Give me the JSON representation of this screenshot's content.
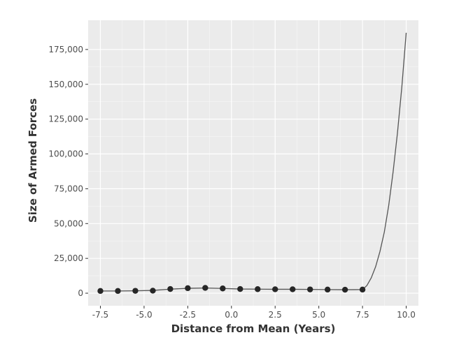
{
  "chart_data": {
    "type": "line",
    "title": "",
    "xlabel": "Distance from Mean (Years)",
    "ylabel": "Size of Armed Forces",
    "xlim": [
      -8.2,
      10.7
    ],
    "ylim": [
      -9000,
      196000
    ],
    "x_ticks": [
      -7.5,
      -5.0,
      -2.5,
      0.0,
      2.5,
      5.0,
      7.5,
      10.0
    ],
    "x_tick_labels": [
      "-7.5",
      "-5.0",
      "-2.5",
      "0.0",
      "2.5",
      "5.0",
      "7.5",
      "10.0"
    ],
    "y_ticks": [
      0,
      25000,
      50000,
      75000,
      100000,
      125000,
      150000,
      175000
    ],
    "y_tick_labels": [
      "0",
      "25,000",
      "50,000",
      "75,000",
      "100,000",
      "125,000",
      "150,000",
      "175,000"
    ],
    "grid": true,
    "background": "#ebebeb",
    "series": [
      {
        "type": "scatter",
        "color": "#262626",
        "x": [
          -7.5,
          -6.5,
          -5.5,
          -4.5,
          -3.5,
          -2.5,
          -1.5,
          -0.5,
          0.5,
          1.5,
          2.5,
          3.5,
          4.5,
          5.5,
          6.5,
          7.5
        ],
        "y": [
          1600,
          1600,
          1700,
          1800,
          3000,
          3600,
          3800,
          3400,
          3000,
          2900,
          2800,
          2800,
          2700,
          2600,
          2500,
          2600
        ]
      },
      {
        "type": "line",
        "color": "#555555",
        "x": [
          -7.5,
          -6.5,
          -5.5,
          -4.5,
          -3.5,
          -2.5,
          -1.5,
          -0.5,
          0.5,
          1.5,
          2.5,
          3.5,
          4.5,
          5.5,
          6.5,
          7.5,
          7.75,
          8.0,
          8.25,
          8.5,
          8.75,
          9.0,
          9.25,
          9.5,
          9.75,
          10.0
        ],
        "y": [
          1600,
          1600,
          1700,
          2000,
          2900,
          3500,
          3700,
          3400,
          3000,
          2900,
          2800,
          2800,
          2700,
          2600,
          2500,
          2600,
          5500,
          11000,
          19000,
          30000,
          44000,
          63000,
          87000,
          115000,
          148000,
          187000
        ]
      }
    ]
  }
}
